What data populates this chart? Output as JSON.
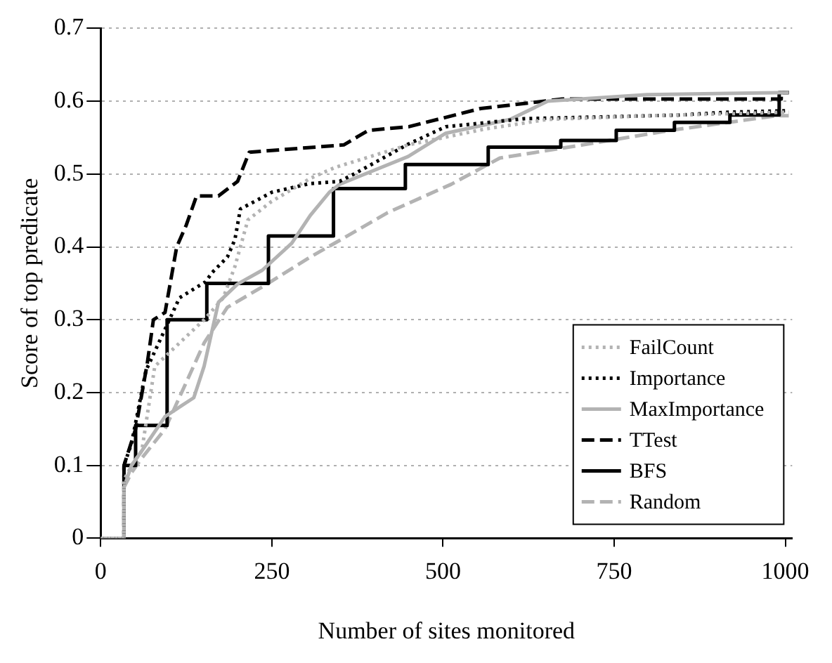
{
  "chart_data": {
    "type": "line",
    "xlabel": "Number of sites monitored",
    "ylabel": "Score of top predicate",
    "xlim": [
      0,
      1010
    ],
    "xticks": [
      0,
      250,
      500,
      750,
      1000
    ],
    "ylim": [
      0,
      0.7
    ],
    "yticks": [
      0,
      0.1,
      0.2,
      0.3,
      0.4,
      0.5,
      0.6,
      0.7
    ],
    "grid": "y",
    "legend": "bottom right",
    "marker": "none",
    "series": [
      {
        "name": "FailCount",
        "color": "#b3b3b3",
        "line_style": "dotted",
        "x": [
          0,
          34,
          34,
          45,
          60,
          79,
          115,
          151,
          179,
          196,
          215,
          249,
          306,
          342,
          449,
          562,
          653,
          800,
          1005
        ],
        "values": [
          0,
          0,
          0.08,
          0.1,
          0.12,
          0.236,
          0.268,
          0.3,
          0.33,
          0.373,
          0.437,
          0.462,
          0.494,
          0.509,
          0.54,
          0.562,
          0.575,
          0.58,
          0.585
        ]
      },
      {
        "name": "Importance",
        "color": "#000000",
        "line_style": "dotted",
        "x": [
          0,
          34,
          34,
          45,
          66,
          94,
          115,
          153,
          163,
          185,
          196,
          204,
          250,
          306,
          349,
          370,
          449,
          504,
          619,
          845,
          917,
          1005
        ],
        "values": [
          0,
          0,
          0.1,
          0.13,
          0.23,
          0.287,
          0.33,
          0.352,
          0.365,
          0.386,
          0.41,
          0.452,
          0.475,
          0.487,
          0.49,
          0.5,
          0.541,
          0.565,
          0.576,
          0.581,
          0.585,
          0.587
        ]
      },
      {
        "name": "MaxImportance",
        "color": "#b3b3b3",
        "line_style": "solid",
        "x": [
          0,
          34,
          34,
          45,
          60,
          94,
          136,
          151,
          172,
          200,
          236,
          279,
          306,
          334,
          349,
          449,
          504,
          598,
          653,
          798,
          1005
        ],
        "values": [
          0,
          0,
          0.07,
          0.1,
          0.12,
          0.167,
          0.193,
          0.236,
          0.324,
          0.349,
          0.368,
          0.405,
          0.443,
          0.475,
          0.486,
          0.524,
          0.556,
          0.575,
          0.6,
          0.609,
          0.612
        ]
      },
      {
        "name": "TTest",
        "color": "#000000",
        "line_style": "dashed",
        "x": [
          0,
          34,
          34,
          51,
          68,
          77,
          94,
          111,
          125,
          140,
          172,
          200,
          217,
          355,
          391,
          450,
          555,
          674,
          994,
          994,
          1005
        ],
        "values": [
          0,
          0,
          0.1,
          0.15,
          0.24,
          0.3,
          0.31,
          0.4,
          0.43,
          0.47,
          0.47,
          0.49,
          0.53,
          0.54,
          0.56,
          0.565,
          0.59,
          0.603,
          0.603,
          0.612,
          0.612
        ]
      },
      {
        "name": "BFS",
        "type": "step",
        "color": "#000000",
        "line_style": "solid",
        "x": [
          0,
          34,
          51,
          97,
          155,
          245,
          340,
          445,
          566,
          672,
          753,
          838,
          919,
          991,
          1005
        ],
        "values": [
          0,
          0.1,
          0.155,
          0.3,
          0.35,
          0.415,
          0.48,
          0.513,
          0.537,
          0.546,
          0.56,
          0.571,
          0.581,
          0.612,
          0.612
        ]
      },
      {
        "name": "Random",
        "color": "#b3b3b3",
        "line_style": "dashed",
        "x": [
          0,
          34,
          34,
          45,
          60,
          94,
          151,
          185,
          243,
          306,
          349,
          419,
          512,
          583,
          704,
          832,
          987,
          1005
        ],
        "values": [
          0,
          0,
          0.07,
          0.09,
          0.11,
          0.15,
          0.268,
          0.317,
          0.349,
          0.386,
          0.409,
          0.447,
          0.486,
          0.522,
          0.54,
          0.56,
          0.58,
          0.58
        ]
      }
    ]
  }
}
